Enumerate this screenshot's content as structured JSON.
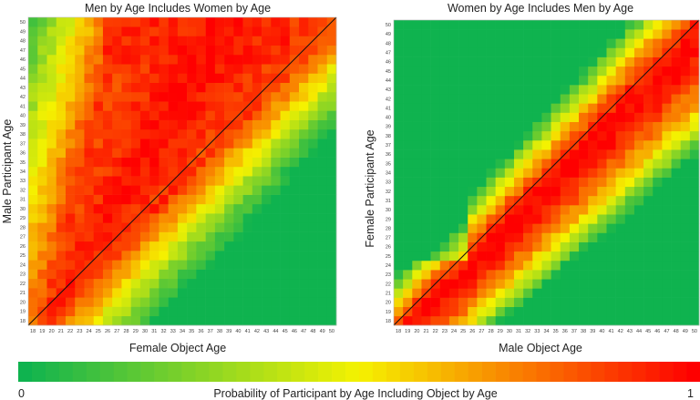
{
  "chart_data": [
    {
      "type": "heatmap",
      "title": "Men by Age Includes Women by Age",
      "xlabel": "Female Object Age",
      "ylabel": "Male Participant Age",
      "x": [
        18,
        19,
        20,
        21,
        22,
        23,
        24,
        25,
        26,
        27,
        28,
        29,
        30,
        31,
        32,
        33,
        34,
        35,
        36,
        37,
        38,
        39,
        40,
        41,
        42,
        43,
        44,
        45,
        46,
        47,
        48,
        49,
        50
      ],
      "y": [
        18,
        19,
        20,
        21,
        22,
        23,
        24,
        25,
        26,
        27,
        28,
        29,
        30,
        31,
        32,
        33,
        34,
        35,
        36,
        37,
        38,
        39,
        40,
        41,
        42,
        43,
        44,
        45,
        46,
        47,
        48,
        49,
        50
      ],
      "value_range": [
        0,
        1
      ],
      "diagonal_line": true,
      "description_of_pattern": "High probability for object ages at or below participant age, extending up to ~50 for older men; low for older women relative to young men"
    },
    {
      "type": "heatmap",
      "title": "Women by Age Includes Men by Age",
      "xlabel": "Male Object Age",
      "ylabel": "Female Participant Age",
      "x": [
        18,
        19,
        20,
        21,
        22,
        23,
        24,
        25,
        26,
        27,
        28,
        29,
        30,
        31,
        32,
        33,
        34,
        35,
        36,
        37,
        38,
        39,
        40,
        41,
        42,
        43,
        44,
        45,
        46,
        47,
        48,
        49,
        50
      ],
      "y": [
        18,
        19,
        20,
        21,
        22,
        23,
        24,
        25,
        26,
        27,
        28,
        29,
        30,
        31,
        32,
        33,
        34,
        35,
        36,
        37,
        38,
        39,
        40,
        41,
        42,
        43,
        44,
        45,
        46,
        47,
        48,
        49,
        50
      ],
      "value_range": [
        0,
        1
      ],
      "diagonal_line": true,
      "description_of_pattern": "High probability band around and slightly above the diagonal; low for young men relative to older women"
    }
  ],
  "colorbar": {
    "label": "Probability of Participant by Age Including Object by Age",
    "min_label": "0",
    "max_label": "1",
    "colors": [
      "#0fb34f",
      "#f5f200",
      "#fe0000"
    ]
  }
}
